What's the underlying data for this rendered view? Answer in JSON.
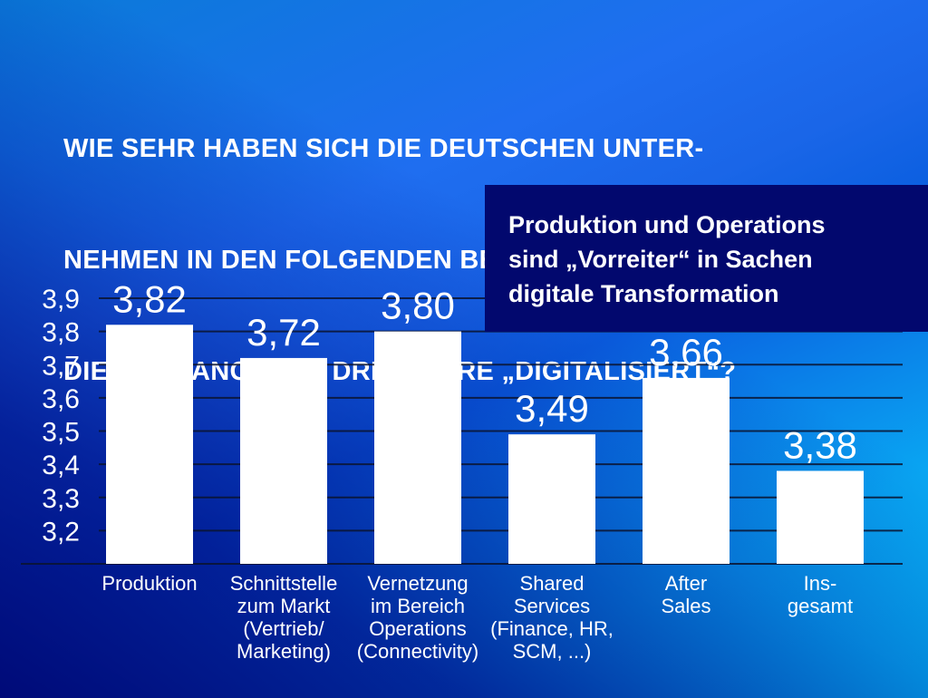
{
  "title_lines": [
    "WIE SEHR HABEN SICH DIE DEUTSCHEN UNTER-",
    "NEHMEN IN DEN FOLGENDEN BEREICHEN ÜBER",
    "DIE VERGANGENEN DREI JAHRE „DIGITALISIERT“?"
  ],
  "callout_lines": [
    "Produktion und Operations",
    "sind „Vorreiter“ in Sachen",
    "digitale Transformation"
  ],
  "colors": {
    "bar": "#ffffff",
    "callout_bg": "#02086e",
    "text": "#ffffff",
    "gradient_start": "#0a7ad8",
    "gradient_mid": "#1f6ef0",
    "gradient_end": "#06c4fb",
    "shade_dark": "#000a78"
  },
  "chart_data": {
    "type": "bar",
    "title": "WIE SEHR HABEN SICH DIE DEUTSCHEN UNTERNEHMEN IN DEN FOLGENDEN BEREICHEN ÜBER DIE VERGANGENEN DREI JAHRE „DIGITALISIERT“?",
    "xlabel": "",
    "ylabel": "",
    "categories": [
      [
        "Produktion"
      ],
      [
        "Schnittstelle",
        "zum Markt",
        "(Vertrieb/",
        "Marketing)"
      ],
      [
        "Vernetzung",
        "im Bereich",
        "Operations",
        "(Connectivity)"
      ],
      [
        "Shared",
        "Services",
        "(Finance, HR,",
        "SCM, ...)"
      ],
      [
        "After",
        "Sales"
      ],
      [
        "Ins-",
        "gesamt"
      ]
    ],
    "values": [
      3.82,
      3.72,
      3.8,
      3.49,
      3.66,
      3.38
    ],
    "value_labels": [
      "3,82",
      "3,72",
      "3,80",
      "3,49",
      "3,66",
      "3,38"
    ],
    "yticks": [
      3.2,
      3.3,
      3.4,
      3.5,
      3.6,
      3.7,
      3.8,
      3.9
    ],
    "ytick_labels": [
      "3,2",
      "3,3",
      "3,4",
      "3,5",
      "3,6",
      "3,7",
      "3,8",
      "3,9"
    ],
    "ylim": [
      3.1,
      3.9
    ],
    "grid": true,
    "legend": "none",
    "annotation": "Produktion und Operations sind „Vorreiter“ in Sachen digitale Transformation"
  }
}
